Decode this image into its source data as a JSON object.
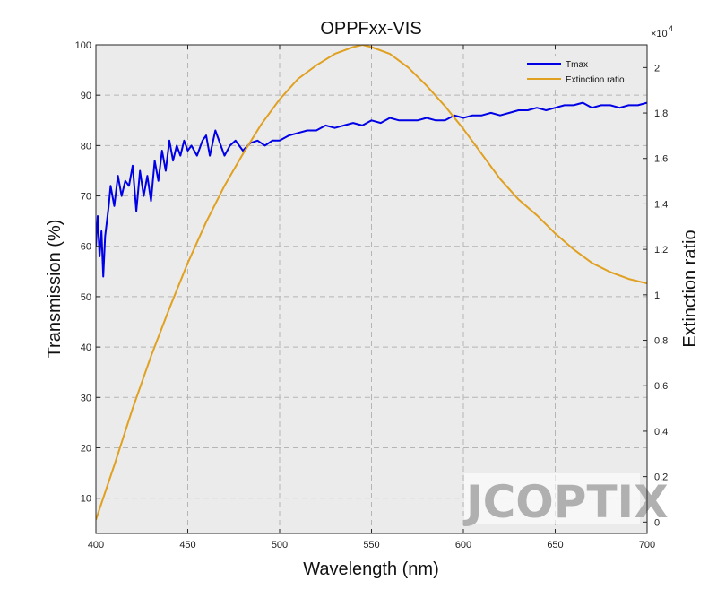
{
  "chart_data": {
    "type": "line",
    "title": "OPPFxx-VIS",
    "xlabel": "Wavelength (nm)",
    "ylabel_left": "Transmission (%)",
    "ylabel_right": "Extinction ratio",
    "right_axis_multiplier": "×10",
    "right_axis_exponent": "4",
    "xlim": [
      400,
      700
    ],
    "ylim_left": [
      3,
      100
    ],
    "ylim_right": [
      -0.05,
      2.1
    ],
    "x_ticks": [
      "400",
      "450",
      "500",
      "550",
      "600",
      "650",
      "700"
    ],
    "y_left_ticks": [
      "10",
      "20",
      "30",
      "40",
      "50",
      "60",
      "70",
      "80",
      "90",
      "100"
    ],
    "y_right_ticks": [
      "0",
      "0.2",
      "0.4",
      "0.6",
      "0.8",
      "1",
      "1.2",
      "1.4",
      "1.6",
      "1.8",
      "2"
    ],
    "grid": true,
    "legend_position": "top-right",
    "series": [
      {
        "name": "Tmax",
        "axis": "left",
        "color": "#0000e6",
        "x": [
          400,
          401,
          402,
          403,
          404,
          405,
          406,
          407,
          408,
          410,
          412,
          414,
          416,
          418,
          420,
          422,
          424,
          426,
          428,
          430,
          432,
          434,
          436,
          438,
          440,
          442,
          444,
          446,
          448,
          450,
          452,
          455,
          458,
          460,
          462,
          465,
          468,
          470,
          473,
          476,
          480,
          484,
          488,
          492,
          496,
          500,
          505,
          510,
          515,
          520,
          525,
          530,
          535,
          540,
          545,
          550,
          555,
          560,
          565,
          570,
          575,
          580,
          585,
          590,
          595,
          600,
          605,
          610,
          615,
          620,
          625,
          630,
          635,
          640,
          645,
          650,
          655,
          660,
          665,
          670,
          675,
          680,
          685,
          690,
          695,
          700
        ],
        "values": [
          60,
          66,
          58,
          63,
          54,
          62,
          65,
          68,
          72,
          68,
          74,
          70,
          73,
          72,
          76,
          67,
          75,
          70,
          74,
          69,
          77,
          73,
          79,
          75,
          81,
          77,
          80,
          78,
          81,
          79,
          80,
          78,
          81,
          82,
          78,
          83,
          80,
          78,
          80,
          81,
          79,
          80.5,
          81,
          80,
          81,
          81,
          82,
          82.5,
          83,
          83,
          84,
          83.5,
          84,
          84.5,
          84,
          85,
          84.5,
          85.5,
          85,
          85,
          85,
          85.5,
          85,
          85,
          86,
          85.5,
          86,
          86,
          86.5,
          86,
          86.5,
          87,
          87,
          87.5,
          87,
          87.5,
          88,
          88,
          88.5,
          87.5,
          88,
          88,
          87.5,
          88,
          88,
          88.5
        ]
      },
      {
        "name": "Extinction ratio",
        "axis": "right",
        "color": "#e0a020",
        "x": [
          400,
          410,
          420,
          430,
          440,
          450,
          460,
          470,
          480,
          490,
          500,
          510,
          520,
          530,
          540,
          545,
          550,
          560,
          570,
          580,
          590,
          600,
          610,
          620,
          630,
          640,
          650,
          660,
          670,
          680,
          690,
          700
        ],
        "values": [
          0.01,
          0.25,
          0.5,
          0.73,
          0.94,
          1.14,
          1.32,
          1.48,
          1.62,
          1.75,
          1.86,
          1.95,
          2.01,
          2.06,
          2.09,
          2.1,
          2.09,
          2.06,
          2.0,
          1.92,
          1.83,
          1.73,
          1.62,
          1.51,
          1.42,
          1.35,
          1.27,
          1.2,
          1.14,
          1.1,
          1.07,
          1.05
        ]
      }
    ],
    "watermark": "JCOPTIX"
  }
}
